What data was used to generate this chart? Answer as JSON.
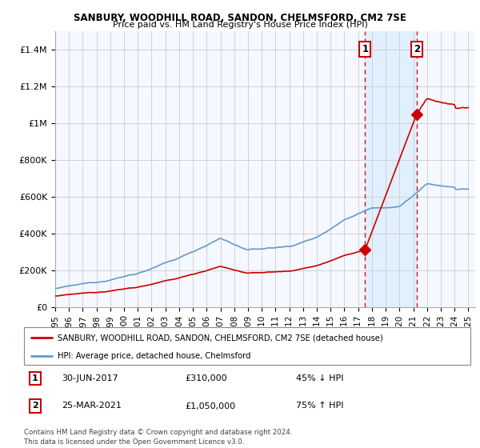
{
  "title1": "SANBURY, WOODHILL ROAD, SANDON, CHELMSFORD, CM2 7SE",
  "title2": "Price paid vs. HM Land Registry's House Price Index (HPI)",
  "ylim": [
    0,
    1500000
  ],
  "xlim_start": 1995.0,
  "xlim_end": 2025.5,
  "yticks": [
    0,
    200000,
    400000,
    600000,
    800000,
    1000000,
    1200000,
    1400000
  ],
  "ytick_labels": [
    "£0",
    "£200K",
    "£400K",
    "£600K",
    "£800K",
    "£1M",
    "£1.2M",
    "£1.4M"
  ],
  "xticks": [
    1995,
    1996,
    1997,
    1998,
    1999,
    2000,
    2001,
    2002,
    2003,
    2004,
    2005,
    2006,
    2007,
    2008,
    2009,
    2010,
    2011,
    2012,
    2013,
    2014,
    2015,
    2016,
    2017,
    2018,
    2019,
    2020,
    2021,
    2022,
    2023,
    2024,
    2025
  ],
  "sale1_x": 2017.5,
  "sale1_y": 310000,
  "sale2_x": 2021.25,
  "sale2_y": 1050000,
  "property_color": "#cc0000",
  "hpi_color": "#6699cc",
  "vline_color": "#cc0000",
  "shade_color": "#ddeeff",
  "grid_color": "#cccccc",
  "plot_bg_color": "#f5f8ff",
  "legend_label1": "SANBURY, WOODHILL ROAD, SANDON, CHELMSFORD, CM2 7SE (detached house)",
  "legend_label2": "HPI: Average price, detached house, Chelmsford",
  "annotation_border_color": "#cc0000",
  "footer1": "Contains HM Land Registry data © Crown copyright and database right 2024.",
  "footer2": "This data is licensed under the Open Government Licence v3.0."
}
